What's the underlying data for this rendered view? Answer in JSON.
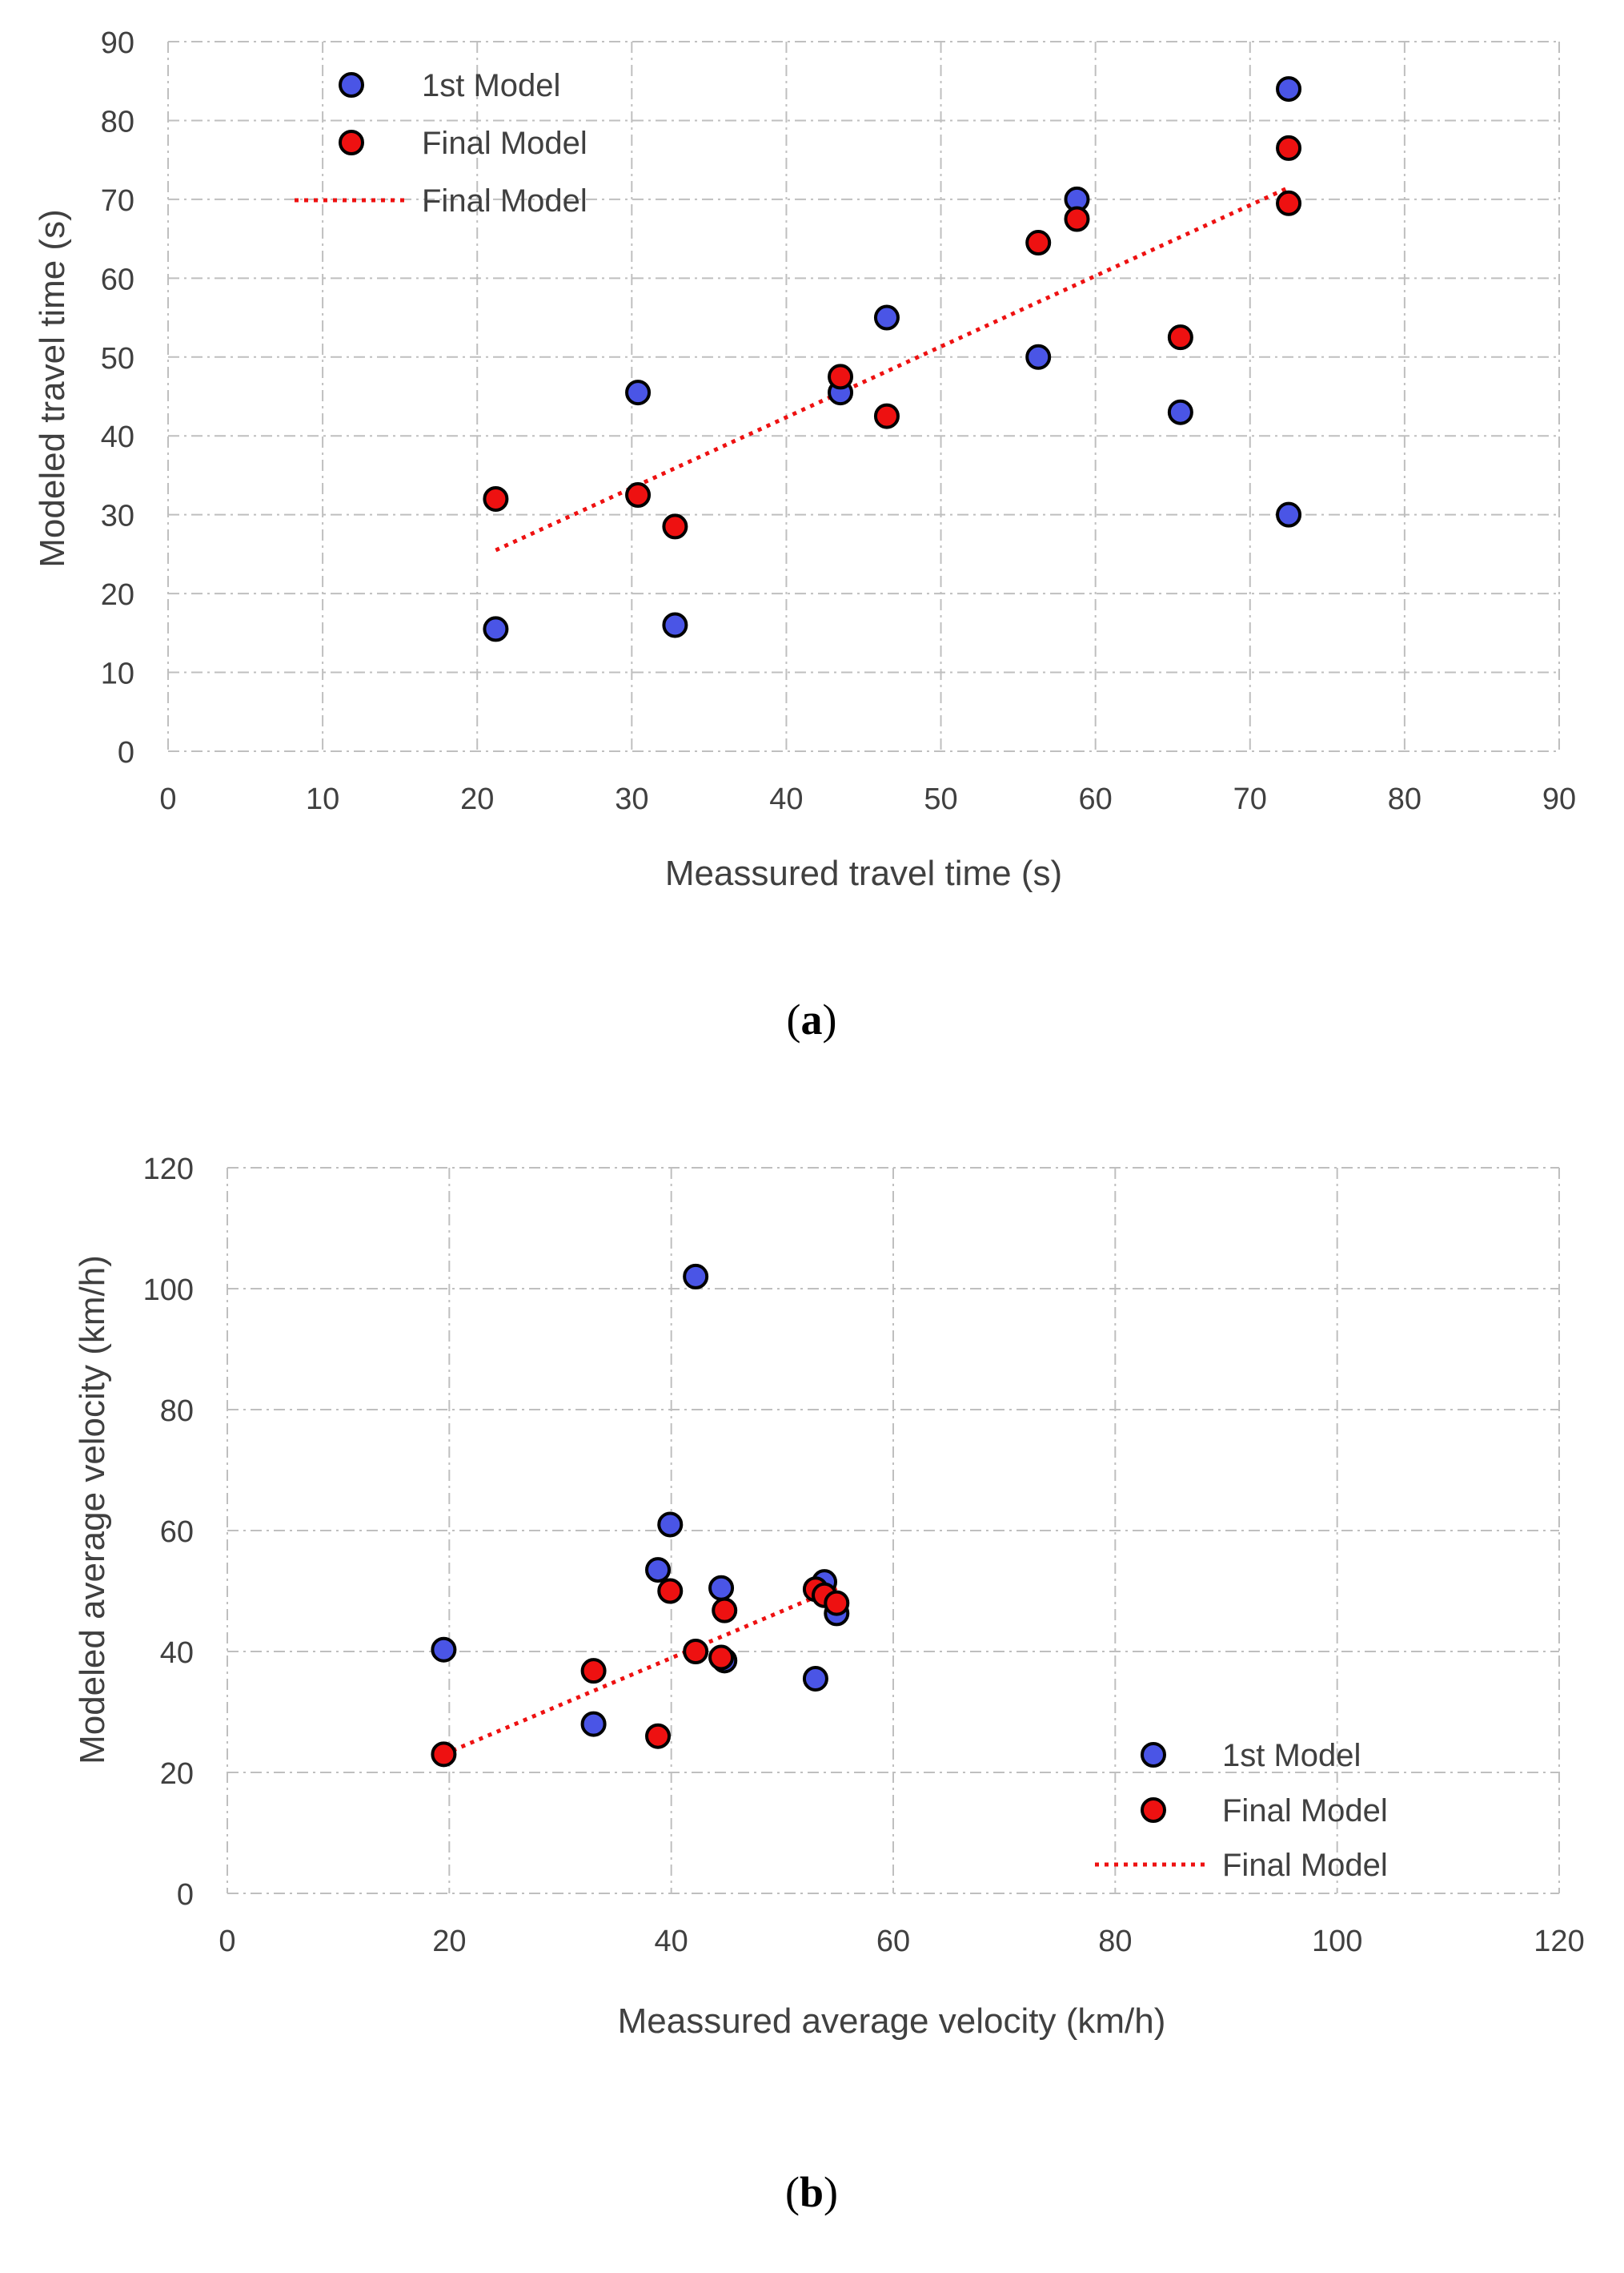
{
  "colors": {
    "first_model": "#4a55e6",
    "final_model": "#ee1111",
    "trendline": "#ee1111",
    "grid": "#bfbfbf",
    "text": "#404040"
  },
  "chart_data": [
    {
      "type": "scatter",
      "id": "a",
      "caption_open": "(",
      "caption_letter": "a",
      "caption_close": ")",
      "xlabel": "Meassured travel time (s)",
      "ylabel": "Modeled travel time (s)",
      "xlim": [
        0,
        90
      ],
      "ylim": [
        0,
        90
      ],
      "xticks": [
        0,
        10,
        20,
        30,
        40,
        50,
        60,
        70,
        80,
        90
      ],
      "yticks": [
        0,
        10,
        20,
        30,
        40,
        50,
        60,
        70,
        80,
        90
      ],
      "grid": true,
      "legend_position": "top-left",
      "series": [
        {
          "name": "1st Model",
          "kind": "marker",
          "color": "#4a55e6",
          "x": [
            21.2,
            30.4,
            32.8,
            43.5,
            46.5,
            56.3,
            58.8,
            65.5,
            72.5,
            72.5
          ],
          "y": [
            15.5,
            45.5,
            16.0,
            45.5,
            55.0,
            50.0,
            70.0,
            43.0,
            30.0,
            84.0
          ]
        },
        {
          "name": "Final Model",
          "kind": "marker",
          "color": "#ee1111",
          "x": [
            21.2,
            30.4,
            32.8,
            43.5,
            46.5,
            56.3,
            58.8,
            65.5,
            72.5,
            72.5
          ],
          "y": [
            32.0,
            32.5,
            28.5,
            47.5,
            42.5,
            64.5,
            67.5,
            52.5,
            69.5,
            76.5
          ]
        },
        {
          "name": "Final Model",
          "kind": "trendline",
          "color": "#ee1111",
          "x": [
            21.2,
            72.5
          ],
          "y": [
            25.5,
            71.5
          ]
        }
      ]
    },
    {
      "type": "scatter",
      "id": "b",
      "caption_open": "(",
      "caption_letter": "b",
      "caption_close": ")",
      "xlabel": "Meassured average velocity (km/h)",
      "ylabel": "Modeled average velocity (km/h)",
      "xlim": [
        0,
        120
      ],
      "ylim": [
        0,
        120
      ],
      "xticks": [
        0,
        20,
        40,
        60,
        80,
        100,
        120
      ],
      "yticks": [
        0,
        20,
        40,
        60,
        80,
        100,
        120
      ],
      "grid": true,
      "legend_position": "bottom-right",
      "series": [
        {
          "name": "1st Model",
          "kind": "marker",
          "color": "#4a55e6",
          "x": [
            19.5,
            33.0,
            38.8,
            39.9,
            42.2,
            44.5,
            44.8,
            53.0,
            53.8,
            54.9
          ],
          "y": [
            40.3,
            28.0,
            53.5,
            61.0,
            102.0,
            50.5,
            38.5,
            35.5,
            51.5,
            46.3
          ]
        },
        {
          "name": "Final Model",
          "kind": "marker",
          "color": "#ee1111",
          "x": [
            19.5,
            33.0,
            38.8,
            39.9,
            42.2,
            44.5,
            44.8,
            53.0,
            53.8,
            54.9
          ],
          "y": [
            23.0,
            36.8,
            26.0,
            50.0,
            40.0,
            39.0,
            46.8,
            50.3,
            49.3,
            48.0
          ]
        },
        {
          "name": "Final Model",
          "kind": "trendline",
          "color": "#ee1111",
          "x": [
            19.5,
            54.9
          ],
          "y": [
            23.0,
            50.5
          ]
        }
      ]
    }
  ]
}
